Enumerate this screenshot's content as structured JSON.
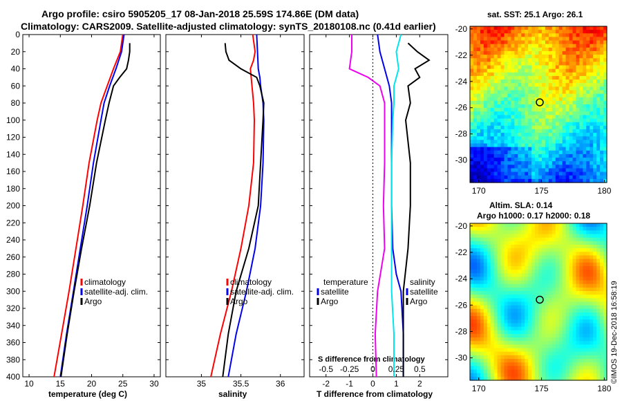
{
  "header": {
    "line1": "Argo profile: csiro 5905205_17 08-Jan-2018 25.59S 174.86E (DM data)",
    "line2": "Climatology: CARS2009. Satellite-adjusted climatology: synTS_20180108.nc (0.41d earlier)"
  },
  "stamp": "©IMOS 19-Dec-2018 16:58:19",
  "colors": {
    "climatology": "#ff0000",
    "satellite": "#0000ee",
    "argo": "#000000",
    "salinity_diff": "#ee00ee",
    "temperature_diff": "#00e5ee"
  },
  "chart_data": [
    {
      "type": "line",
      "name": "temperature",
      "xlabel": "temperature (deg C)",
      "xlim": [
        9,
        31
      ],
      "xticks": [
        10,
        15,
        20,
        25,
        30
      ],
      "ylim": [
        0,
        400
      ],
      "yticks": [
        0,
        20,
        40,
        60,
        80,
        100,
        120,
        140,
        160,
        180,
        200,
        220,
        240,
        260,
        280,
        300,
        320,
        340,
        360,
        380,
        400
      ],
      "legend": [
        "climatology",
        "satellite-adj. clim.",
        "Argo"
      ],
      "series": [
        {
          "name": "climatology",
          "color": "#ff0000",
          "depth": [
            0,
            20,
            40,
            60,
            80,
            100,
            150,
            200,
            250,
            300,
            350,
            400
          ],
          "values": [
            25.0,
            24.6,
            23.5,
            22.5,
            21.5,
            20.9,
            19.6,
            18.6,
            17.5,
            16.4,
            15.2,
            14.0
          ]
        },
        {
          "name": "satellite-adj. clim.",
          "color": "#0000ee",
          "depth": [
            0,
            20,
            40,
            60,
            80,
            100,
            150,
            200,
            250,
            300,
            350,
            400
          ],
          "values": [
            25.2,
            24.8,
            23.9,
            22.9,
            22.0,
            21.5,
            20.3,
            19.3,
            18.2,
            17.1,
            16.0,
            15.0
          ]
        },
        {
          "name": "Argo",
          "color": "#000000",
          "depth": [
            10,
            20,
            30,
            40,
            50,
            60,
            80,
            100,
            150,
            200,
            250,
            300,
            350,
            400
          ],
          "values": [
            26.1,
            26.1,
            25.9,
            25.6,
            24.5,
            23.5,
            22.8,
            22.2,
            20.8,
            19.7,
            18.4,
            17.2,
            16.1,
            15.1
          ]
        }
      ]
    },
    {
      "type": "line",
      "name": "salinity",
      "xlabel": "salinity",
      "xlim": [
        34.55,
        36.3
      ],
      "xticks": [
        35,
        35.5,
        36
      ],
      "ylim": [
        0,
        400
      ],
      "legend": [
        "climatology",
        "satellite-adj. clim.",
        "Argo"
      ],
      "series": [
        {
          "name": "climatology",
          "color": "#ff0000",
          "depth": [
            0,
            20,
            30,
            40,
            60,
            80,
            100,
            150,
            200,
            250,
            300,
            350,
            400
          ],
          "values": [
            35.65,
            35.68,
            35.66,
            35.62,
            35.64,
            35.66,
            35.67,
            35.66,
            35.6,
            35.5,
            35.38,
            35.24,
            35.12
          ]
        },
        {
          "name": "satellite-adj. clim.",
          "color": "#0000ee",
          "depth": [
            0,
            20,
            40,
            50,
            60,
            80,
            100,
            150,
            200,
            250,
            300,
            350,
            400
          ],
          "values": [
            35.7,
            35.71,
            35.72,
            35.74,
            35.75,
            35.78,
            35.79,
            35.78,
            35.75,
            35.68,
            35.57,
            35.44,
            35.34
          ]
        },
        {
          "name": "Argo",
          "color": "#000000",
          "depth": [
            10,
            20,
            30,
            40,
            50,
            60,
            80,
            100,
            150,
            200,
            250,
            300,
            350,
            400
          ],
          "values": [
            35.3,
            35.31,
            35.35,
            35.5,
            35.7,
            35.74,
            35.79,
            35.78,
            35.75,
            35.72,
            35.6,
            35.44,
            35.34,
            35.27
          ]
        }
      ]
    },
    {
      "type": "line",
      "name": "difference",
      "xlabel": "T difference from climatology",
      "xlabel_top": "S difference from climatology",
      "xlim": [
        -2.7,
        3.2
      ],
      "xticks": [
        -2,
        -1,
        0,
        1,
        2
      ],
      "xticks_top_labels": [
        "-0.5",
        "-0.25",
        "0",
        "0.25",
        "0.5"
      ],
      "xticks_top_positions": [
        -2,
        -1,
        0,
        1,
        2
      ],
      "ylim": [
        0,
        400
      ],
      "legend_left": [
        "temperature",
        "satellite",
        "Argo"
      ],
      "legend_right": [
        "salinity",
        "satellite",
        "Argo"
      ],
      "series": [
        {
          "name": "S satellite-clim",
          "color": "#0000ee",
          "depth": [
            0,
            20,
            40,
            60,
            80,
            100,
            150,
            200,
            250,
            280,
            300,
            350,
            400
          ],
          "values": [
            0.2,
            0.3,
            0.5,
            0.7,
            0.8,
            0.8,
            0.8,
            0.8,
            0.85,
            1.0,
            1.2,
            1.3,
            1.3
          ]
        },
        {
          "name": "S Argo-clim",
          "color": "#ee00ee",
          "depth": [
            0,
            20,
            40,
            50,
            60,
            80,
            100,
            150,
            200,
            250,
            300,
            350,
            400
          ],
          "values": [
            -0.9,
            -0.9,
            -1.0,
            -0.2,
            0.3,
            0.5,
            0.5,
            0.5,
            0.45,
            0.5,
            0.2,
            0.1,
            0.15
          ]
        },
        {
          "name": "T satellite-clim",
          "color": "#00e5ee",
          "depth": [
            0,
            20,
            40,
            60,
            80,
            100,
            150,
            200,
            250,
            300,
            350,
            400
          ],
          "values": [
            1.2,
            1.0,
            1.1,
            0.9,
            0.9,
            0.85,
            0.8,
            0.8,
            0.8,
            0.8,
            0.9,
            0.9
          ]
        },
        {
          "name": "T Argo-clim",
          "color": "#000000",
          "depth": [
            10,
            20,
            30,
            40,
            50,
            60,
            80,
            100,
            150,
            200,
            250,
            300,
            350,
            400
          ],
          "values": [
            1.5,
            1.9,
            2.4,
            1.8,
            2.0,
            1.5,
            1.6,
            1.4,
            1.6,
            1.6,
            1.5,
            1.3,
            1.3,
            1.3
          ]
        }
      ]
    },
    {
      "type": "heatmap",
      "name": "sst-map",
      "title": "sat. SST: 25.1 Argo: 26.1",
      "xlim": [
        169.3,
        180.2
      ],
      "ylim": [
        -31.7,
        -19.8
      ],
      "xticks": [
        170,
        175,
        180
      ],
      "yticks": [
        -20,
        -22,
        -24,
        -26,
        -28,
        -30
      ],
      "marker": [
        174.86,
        -25.59
      ]
    },
    {
      "type": "heatmap",
      "name": "sla-map",
      "title": "Altim. SLA: 0.14",
      "subtitle": "Argo h1000: 0.17 h2000: 0.18",
      "xlim": [
        169.3,
        180.2
      ],
      "ylim": [
        -31.7,
        -19.8
      ],
      "xticks": [
        170,
        175,
        180
      ],
      "yticks": [
        -20,
        -22,
        -24,
        -26,
        -28,
        -30
      ],
      "marker": [
        174.86,
        -25.59
      ]
    }
  ]
}
